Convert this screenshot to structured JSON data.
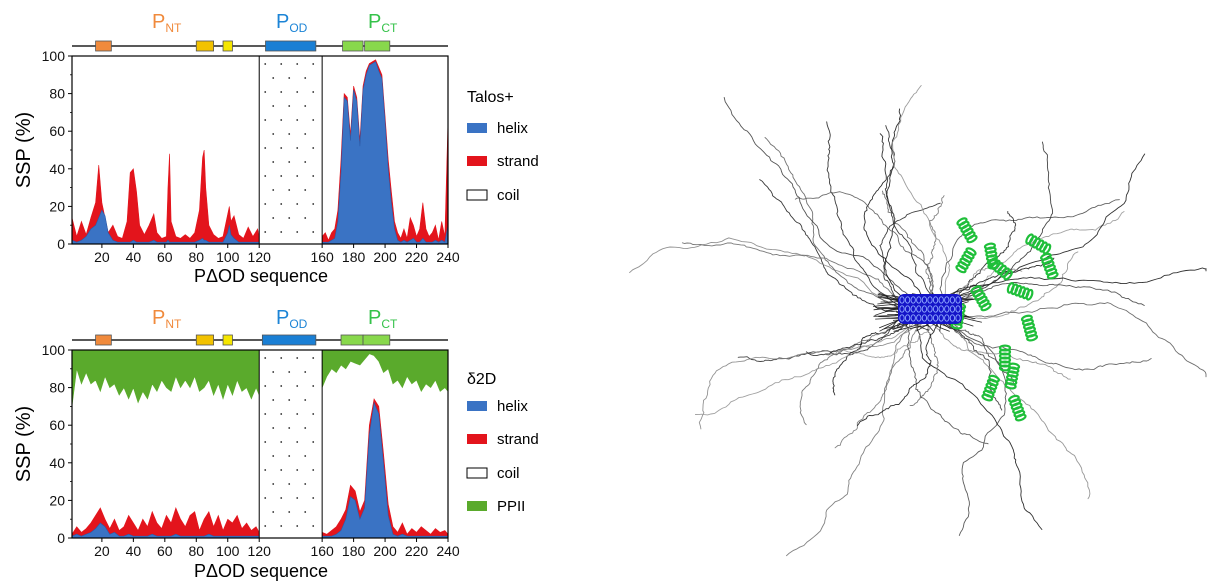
{
  "panels": [
    {
      "id": "talos",
      "domain_labels": {
        "ntd": {
          "main": "P",
          "sub": "NT",
          "color": "#f08a3c"
        },
        "od": {
          "main": "P",
          "sub": "OD",
          "color": "#1c84d6"
        },
        "ctd": {
          "main": "P",
          "sub": "CT",
          "color": "#35c24a"
        }
      },
      "legend": {
        "title": "Talos+",
        "items": [
          {
            "label": "helix",
            "color": "#3a73c4"
          },
          {
            "label": "strand",
            "color": "#e3141c"
          },
          {
            "label": "coil",
            "color": "#ffffff"
          }
        ]
      },
      "ylabel": "SSP  (%)",
      "xlabel": "PΔOD sequence"
    },
    {
      "id": "d2d",
      "domain_labels": {
        "ntd": {
          "main": "P",
          "sub": "NT",
          "color": "#f08a3c"
        },
        "od": {
          "main": "P",
          "sub": "OD",
          "color": "#1c84d6"
        },
        "ctd": {
          "main": "P",
          "sub": "CT",
          "color": "#35c24a"
        }
      },
      "legend": {
        "title": "δ2D",
        "items": [
          {
            "label": "helix",
            "color": "#3a73c4"
          },
          {
            "label": "strand",
            "color": "#e3141c"
          },
          {
            "label": "coil",
            "color": "#ffffff"
          },
          {
            "label": "PPII",
            "color": "#5aaa2c"
          }
        ]
      },
      "ylabel": "SSP  (%)",
      "xlabel": "PΔOD sequence"
    }
  ],
  "chart_data": [
    {
      "type": "area",
      "title": "",
      "xlabel": "PΔOD sequence",
      "ylabel": "SSP  (%)",
      "xlim": [
        1,
        240
      ],
      "ylim": [
        0,
        100
      ],
      "xticks": [
        20,
        40,
        60,
        80,
        100,
        120,
        160,
        180,
        200,
        220,
        240
      ],
      "yticks": [
        0,
        20,
        40,
        60,
        80,
        100
      ],
      "grid": false,
      "legend_position": "right",
      "gap_region": [
        120,
        160
      ],
      "domain_boxes": [
        {
          "start": 16,
          "end": 26,
          "color": "#f08a3c"
        },
        {
          "start": 80,
          "end": 91,
          "color": "#f2c200"
        },
        {
          "start": 97,
          "end": 103,
          "color": "#f5e600"
        },
        {
          "start": 124,
          "end": 156,
          "color": "#1a7fd4"
        },
        {
          "start": 173,
          "end": 186,
          "color": "#88d84c"
        },
        {
          "start": 187,
          "end": 203,
          "color": "#88d84c"
        }
      ],
      "series": [
        {
          "name": "strand",
          "x": [
            1,
            4,
            7,
            10,
            13,
            16,
            18,
            20,
            22,
            24,
            27,
            30,
            33,
            36,
            38,
            40,
            42,
            44,
            47,
            50,
            53,
            55,
            58,
            61,
            62,
            63,
            64,
            67,
            70,
            73,
            76,
            79,
            82,
            84,
            85,
            86,
            88,
            91,
            94,
            97,
            100,
            101,
            102,
            104,
            107,
            110,
            113,
            116,
            119,
            120,
            160,
            162,
            164,
            166,
            168,
            170,
            172,
            174,
            176,
            178,
            180,
            182,
            184,
            186,
            188,
            190,
            192,
            194,
            196,
            198,
            200,
            202,
            204,
            206,
            208,
            210,
            212,
            214,
            216,
            218,
            220,
            222,
            224,
            226,
            228,
            230,
            232,
            234,
            236,
            238,
            240
          ],
          "y": [
            14,
            4,
            12,
            5,
            14,
            22,
            42,
            22,
            14,
            6,
            10,
            4,
            3,
            12,
            38,
            40,
            28,
            10,
            5,
            10,
            16,
            6,
            3,
            4,
            30,
            48,
            12,
            4,
            3,
            5,
            3,
            6,
            18,
            46,
            50,
            30,
            10,
            5,
            3,
            4,
            16,
            20,
            12,
            15,
            5,
            3,
            9,
            4,
            8,
            4,
            4,
            6,
            2,
            6,
            8,
            18,
            45,
            80,
            78,
            58,
            84,
            78,
            55,
            84,
            92,
            96,
            97,
            98,
            94,
            90,
            68,
            45,
            28,
            12,
            6,
            3,
            8,
            3,
            14,
            10,
            4,
            8,
            22,
            8,
            4,
            6,
            10,
            2,
            12,
            4,
            66
          ]
        },
        {
          "name": "helix",
          "x": [
            1,
            4,
            7,
            10,
            13,
            16,
            18,
            20,
            22,
            24,
            27,
            30,
            33,
            36,
            38,
            40,
            42,
            44,
            47,
            50,
            53,
            55,
            58,
            61,
            62,
            63,
            64,
            67,
            70,
            73,
            76,
            79,
            82,
            84,
            85,
            86,
            88,
            91,
            94,
            97,
            100,
            101,
            102,
            104,
            107,
            110,
            113,
            116,
            119,
            120,
            160,
            162,
            164,
            166,
            168,
            170,
            172,
            174,
            176,
            178,
            180,
            182,
            184,
            186,
            188,
            190,
            192,
            194,
            196,
            198,
            200,
            202,
            204,
            206,
            208,
            210,
            212,
            214,
            216,
            218,
            220,
            222,
            224,
            226,
            228,
            230,
            232,
            234,
            236,
            238,
            240
          ],
          "y": [
            2,
            1,
            2,
            4,
            8,
            10,
            14,
            18,
            15,
            6,
            2,
            1,
            1,
            1,
            1,
            2,
            1,
            1,
            1,
            1,
            2,
            1,
            1,
            1,
            2,
            1,
            1,
            1,
            1,
            1,
            1,
            1,
            2,
            3,
            2,
            2,
            1,
            1,
            1,
            1,
            6,
            10,
            5,
            3,
            1,
            1,
            1,
            1,
            1,
            1,
            1,
            1,
            1,
            2,
            3,
            12,
            38,
            78,
            76,
            55,
            82,
            76,
            52,
            82,
            90,
            95,
            96,
            97,
            92,
            88,
            65,
            40,
            22,
            8,
            2,
            1,
            2,
            1,
            2,
            3,
            1,
            1,
            3,
            1,
            1,
            1,
            2,
            1,
            2,
            1,
            10
          ]
        }
      ]
    },
    {
      "type": "area",
      "title": "",
      "xlabel": "PΔOD sequence",
      "ylabel": "SSP  (%)",
      "xlim": [
        1,
        240
      ],
      "ylim": [
        0,
        100
      ],
      "xticks": [
        20,
        40,
        60,
        80,
        100,
        120,
        160,
        180,
        200,
        220,
        240
      ],
      "yticks": [
        0,
        20,
        40,
        60,
        80,
        100
      ],
      "grid": false,
      "legend_position": "right",
      "gap_region": [
        120,
        160
      ],
      "domain_boxes": [
        {
          "start": 16,
          "end": 26,
          "color": "#f08a3c"
        },
        {
          "start": 80,
          "end": 91,
          "color": "#f2c200"
        },
        {
          "start": 97,
          "end": 103,
          "color": "#f5e600"
        },
        {
          "start": 122,
          "end": 156,
          "color": "#1a7fd4"
        },
        {
          "start": 172,
          "end": 186,
          "color": "#88d84c"
        },
        {
          "start": 186,
          "end": 203,
          "color": "#88d84c"
        }
      ],
      "series": [
        {
          "name": "PPII",
          "x": [
            1,
            4,
            7,
            10,
            13,
            16,
            19,
            22,
            25,
            28,
            31,
            34,
            37,
            40,
            43,
            46,
            49,
            52,
            55,
            58,
            61,
            64,
            67,
            70,
            73,
            76,
            79,
            82,
            85,
            88,
            91,
            94,
            97,
            100,
            103,
            106,
            109,
            112,
            115,
            118,
            120,
            160,
            163,
            166,
            169,
            172,
            175,
            178,
            181,
            184,
            187,
            190,
            193,
            196,
            199,
            202,
            205,
            208,
            211,
            214,
            217,
            220,
            223,
            226,
            229,
            232,
            235,
            238,
            240
          ],
          "y": [
            70,
            90,
            82,
            88,
            82,
            84,
            78,
            86,
            80,
            82,
            76,
            80,
            74,
            80,
            72,
            78,
            74,
            82,
            78,
            84,
            80,
            78,
            86,
            80,
            84,
            80,
            86,
            78,
            80,
            84,
            76,
            82,
            74,
            82,
            76,
            84,
            78,
            80,
            74,
            80,
            76,
            80,
            86,
            90,
            88,
            92,
            90,
            94,
            93,
            92,
            95,
            98,
            97,
            94,
            88,
            90,
            82,
            84,
            80,
            86,
            82,
            84,
            78,
            82,
            80,
            84,
            78,
            80,
            78
          ]
        },
        {
          "name": "strand",
          "x": [
            1,
            4,
            7,
            10,
            13,
            16,
            19,
            22,
            25,
            28,
            31,
            34,
            37,
            40,
            43,
            46,
            49,
            52,
            55,
            58,
            61,
            64,
            67,
            70,
            73,
            76,
            79,
            82,
            85,
            88,
            91,
            94,
            97,
            100,
            103,
            106,
            109,
            112,
            115,
            118,
            120,
            160,
            163,
            166,
            169,
            172,
            175,
            178,
            181,
            184,
            187,
            190,
            193,
            196,
            199,
            202,
            205,
            208,
            211,
            214,
            217,
            220,
            223,
            226,
            229,
            232,
            235,
            238,
            240
          ],
          "y": [
            2,
            6,
            3,
            5,
            8,
            12,
            16,
            10,
            5,
            10,
            4,
            6,
            12,
            8,
            4,
            10,
            6,
            14,
            8,
            5,
            12,
            8,
            16,
            10,
            6,
            12,
            14,
            4,
            10,
            14,
            6,
            12,
            4,
            10,
            8,
            12,
            5,
            8,
            4,
            6,
            3,
            3,
            2,
            4,
            6,
            10,
            15,
            28,
            25,
            14,
            20,
            60,
            74,
            70,
            45,
            18,
            6,
            3,
            8,
            2,
            5,
            3,
            6,
            4,
            2,
            5,
            3,
            4,
            2
          ]
        },
        {
          "name": "helix",
          "x": [
            1,
            4,
            7,
            10,
            13,
            16,
            19,
            22,
            25,
            28,
            31,
            34,
            37,
            40,
            43,
            46,
            49,
            52,
            55,
            58,
            61,
            64,
            67,
            70,
            73,
            76,
            79,
            82,
            85,
            88,
            91,
            94,
            97,
            100,
            103,
            106,
            109,
            112,
            115,
            118,
            120,
            160,
            163,
            166,
            169,
            172,
            175,
            178,
            181,
            184,
            187,
            190,
            193,
            196,
            199,
            202,
            205,
            208,
            211,
            214,
            217,
            220,
            223,
            226,
            229,
            232,
            235,
            238,
            240
          ],
          "y": [
            1,
            2,
            1,
            2,
            3,
            5,
            8,
            6,
            2,
            3,
            1,
            1,
            2,
            1,
            1,
            1,
            1,
            2,
            1,
            1,
            1,
            1,
            2,
            1,
            1,
            1,
            1,
            1,
            1,
            2,
            1,
            1,
            1,
            1,
            1,
            1,
            1,
            1,
            1,
            1,
            1,
            1,
            1,
            1,
            2,
            4,
            10,
            22,
            20,
            10,
            16,
            55,
            72,
            66,
            40,
            12,
            2,
            1,
            2,
            1,
            1,
            1,
            1,
            1,
            1,
            1,
            1,
            1,
            1
          ]
        }
      ]
    }
  ],
  "structure_image": {
    "description_colors": {
      "coil": "#1c1c1c",
      "od_helices": "#1414c8",
      "ct_helices": "#1fbf3a"
    }
  }
}
